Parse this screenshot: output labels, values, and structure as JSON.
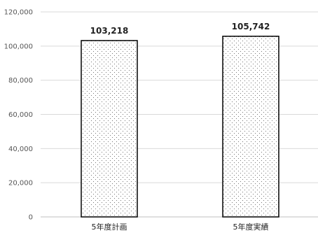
{
  "chart_data": {
    "type": "bar",
    "categories": [
      "5年度計画",
      "5年度実績"
    ],
    "values": [
      103218,
      105742
    ],
    "data_labels": [
      "103,218",
      "105,742"
    ],
    "ylim": [
      0,
      120000
    ],
    "yticks": [
      0,
      20000,
      40000,
      60000,
      80000,
      100000,
      120000
    ],
    "ytick_labels": [
      "0",
      "20,000",
      "40,000",
      "60,000",
      "80,000",
      "100,000",
      "120,000"
    ],
    "title": "",
    "xlabel": "",
    "ylabel": "",
    "grid": true,
    "legend": "none",
    "colors": {
      "bar_fill": "#ffffff",
      "bar_pattern_dot": "#555555",
      "bar_border": "#000000",
      "gridline": "#d9d9d9",
      "axis_line": "#bfbfbf"
    }
  }
}
